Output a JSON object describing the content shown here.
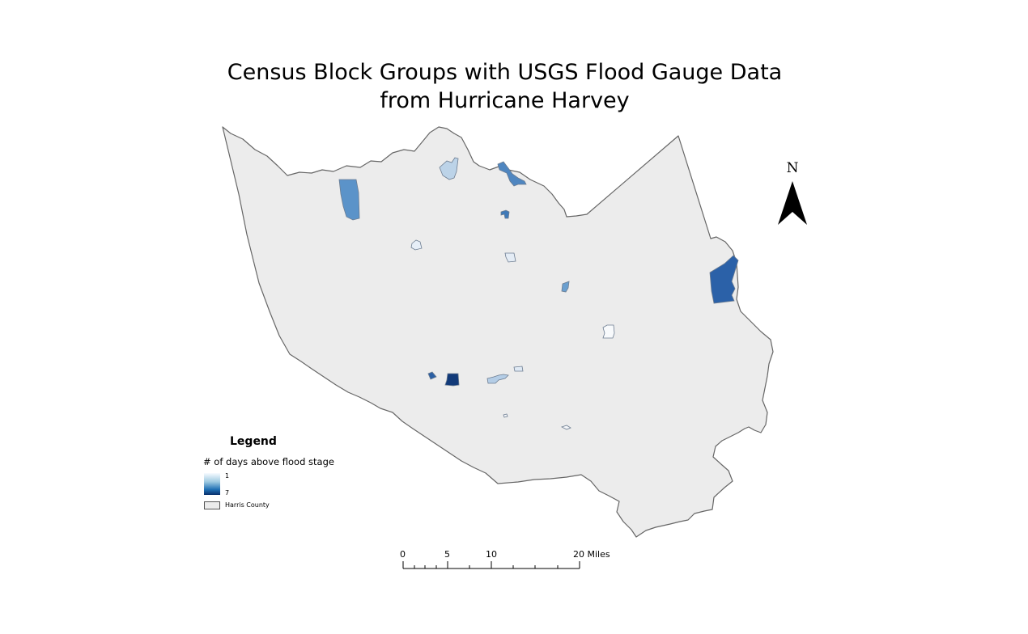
{
  "map": {
    "title_line1": "Census Block Groups with USGS Flood Gauge Data",
    "title_line2": "from Hurricane Harvey"
  },
  "legend": {
    "title": "Legend",
    "field_label": "# of days above flood stage",
    "ramp_min": "1",
    "ramp_max": "7",
    "county_label": "Harris County",
    "colors": {
      "ramp_low": "#f7fbff",
      "ramp_high": "#08306b",
      "county_fill": "#ececec",
      "county_outline": "#555555"
    }
  },
  "north_arrow": {
    "label": "N",
    "icon": "north-arrow-icon"
  },
  "scale_bar": {
    "labels": [
      "0",
      "5",
      "10",
      "20 Miles"
    ]
  },
  "block_groups": [
    {
      "name": "northwest-block",
      "days": 3
    },
    {
      "name": "north-central-block",
      "days": 1
    },
    {
      "name": "north-channel-block",
      "days": 4
    },
    {
      "name": "north-small-block",
      "days": 5
    },
    {
      "name": "west-small-block",
      "days": 1
    },
    {
      "name": "central-block",
      "days": 1
    },
    {
      "name": "central-east-block",
      "days": 3
    },
    {
      "name": "east-border-block",
      "days": 6
    },
    {
      "name": "east-center-block",
      "days": 0
    },
    {
      "name": "southwest-small-block",
      "days": 5
    },
    {
      "name": "southwest-dark-block",
      "days": 7
    },
    {
      "name": "south-central-block",
      "days": 2
    },
    {
      "name": "south-small-block",
      "days": 1
    },
    {
      "name": "south-tiny-block",
      "days": 0
    },
    {
      "name": "south-east-block",
      "days": 0
    }
  ]
}
